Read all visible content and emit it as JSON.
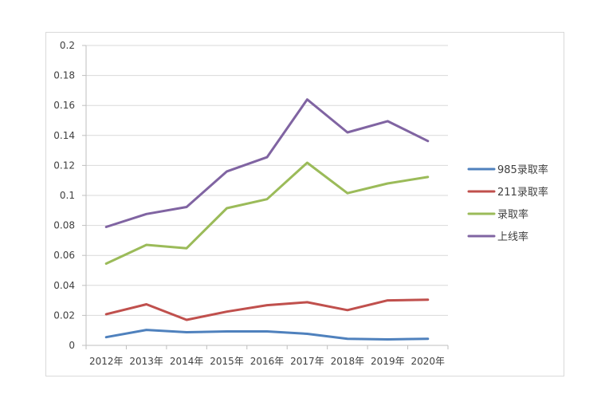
{
  "chart_data": {
    "type": "line",
    "categories": [
      "2012年",
      "2013年",
      "2014年",
      "2015年",
      "2016年",
      "2017年",
      "2018年",
      "2019年",
      "2020年"
    ],
    "series": [
      {
        "name": "985录取率",
        "color": "#4f81bd",
        "values": [
          0.0055,
          0.0103,
          0.0088,
          0.0093,
          0.0093,
          0.0077,
          0.0044,
          0.004,
          0.0044
        ]
      },
      {
        "name": "211录取率",
        "color": "#c0504d",
        "values": [
          0.0208,
          0.0274,
          0.017,
          0.0225,
          0.0268,
          0.0288,
          0.0235,
          0.03,
          0.0305
        ]
      },
      {
        "name": "录取率",
        "color": "#9bbb59",
        "values": [
          0.0545,
          0.067,
          0.0648,
          0.0915,
          0.0975,
          0.1218,
          0.1015,
          0.108,
          0.1123
        ]
      },
      {
        "name": "上线率",
        "color": "#8064a2",
        "values": [
          0.079,
          0.0876,
          0.0923,
          0.116,
          0.1255,
          0.164,
          0.142,
          0.1495,
          0.1363
        ]
      }
    ],
    "y_ticks": [
      "0",
      "0.02",
      "0.04",
      "0.06",
      "0.08",
      "0.1",
      "0.12",
      "0.14",
      "0.16",
      "0.18",
      "0.2"
    ],
    "ylim": [
      0,
      0.2
    ],
    "grid": true,
    "legend_position": "right"
  }
}
